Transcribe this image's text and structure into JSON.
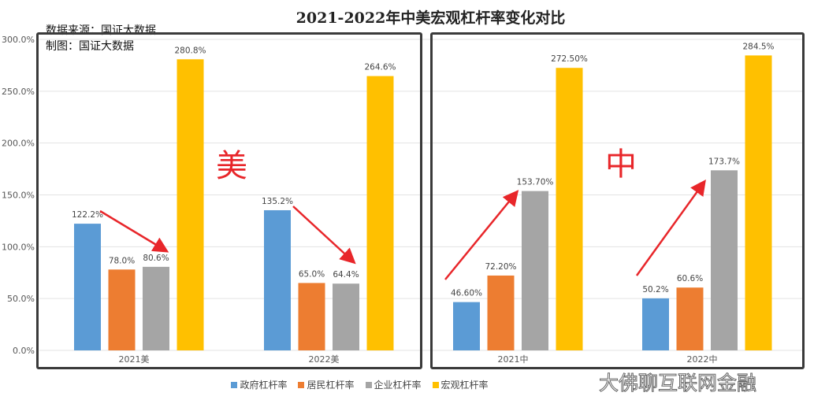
{
  "chart_data": {
    "type": "bar",
    "title": "2021-2022年中美宏观杠杆率变化对比",
    "notes": [
      "数据来源：国证大数据",
      "制图：国证大数据"
    ],
    "categories": [
      "2021美",
      "2022美",
      "2021中",
      "2022中"
    ],
    "series": [
      {
        "name": "政府杠杆率",
        "color": "#5b9bd5",
        "values": [
          122.2,
          135.2,
          46.6,
          50.2
        ],
        "labels": [
          "122.2%",
          "135.2%",
          "46.60%",
          "50.2%"
        ]
      },
      {
        "name": "居民杠杆率",
        "color": "#ed7d31",
        "values": [
          78.0,
          65.0,
          72.2,
          60.6
        ],
        "labels": [
          "78.0%",
          "65.0%",
          "72.20%",
          "60.6%"
        ]
      },
      {
        "name": "企业杠杆率",
        "color": "#a5a5a5",
        "values": [
          80.6,
          64.4,
          153.7,
          173.7
        ],
        "labels": [
          "80.6%",
          "64.4%",
          "153.70%",
          "173.7%"
        ]
      },
      {
        "name": "宏观杠杆率",
        "color": "#ffc000",
        "values": [
          280.8,
          264.6,
          272.5,
          284.5
        ],
        "labels": [
          "280.8%",
          "264.6%",
          "272.50%",
          "284.5%"
        ]
      }
    ],
    "yticks": [
      "0.0%",
      "50.0%",
      "100.0%",
      "150.0%",
      "200.0%",
      "250.0%",
      "300.0%"
    ],
    "ylim": [
      0,
      300
    ],
    "grid": true,
    "legend": "bottom",
    "annotations": {
      "us": "美",
      "cn": "中"
    },
    "watermark": "大佛聊互联网金融"
  }
}
